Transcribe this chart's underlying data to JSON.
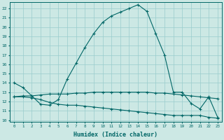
{
  "xlabel": "Humidex (Indice chaleur)",
  "background_color": "#cce8e4",
  "grid_color": "#99cccc",
  "line_color": "#006666",
  "x_ticks": [
    0,
    1,
    2,
    3,
    4,
    5,
    6,
    7,
    8,
    9,
    10,
    11,
    12,
    13,
    14,
    15,
    16,
    17,
    18,
    19,
    20,
    21,
    22,
    23
  ],
  "ylim": [
    9.8,
    22.7
  ],
  "xlim": [
    -0.5,
    23.5
  ],
  "yticks": [
    10,
    11,
    12,
    13,
    14,
    15,
    16,
    17,
    18,
    19,
    20,
    21,
    22
  ],
  "series": [
    [
      14.0,
      13.5,
      12.6,
      11.7,
      11.6,
      12.2,
      14.4,
      16.1,
      17.8,
      19.3,
      20.5,
      21.2,
      21.6,
      22.0,
      22.4,
      21.7,
      19.3,
      17.0,
      13.0,
      13.0,
      11.8,
      11.2,
      12.5,
      10.3
    ],
    [
      12.5,
      12.6,
      12.6,
      12.7,
      12.8,
      12.8,
      12.8,
      12.9,
      12.9,
      13.0,
      13.0,
      13.0,
      13.0,
      13.0,
      13.0,
      13.0,
      12.9,
      12.9,
      12.8,
      12.7,
      12.6,
      12.5,
      12.4,
      12.3
    ],
    [
      12.5,
      12.5,
      12.4,
      12.2,
      11.9,
      11.7,
      11.6,
      11.6,
      11.5,
      11.4,
      11.3,
      11.2,
      11.1,
      11.0,
      10.9,
      10.8,
      10.7,
      10.6,
      10.5,
      10.5,
      10.5,
      10.5,
      10.3,
      10.2
    ]
  ]
}
